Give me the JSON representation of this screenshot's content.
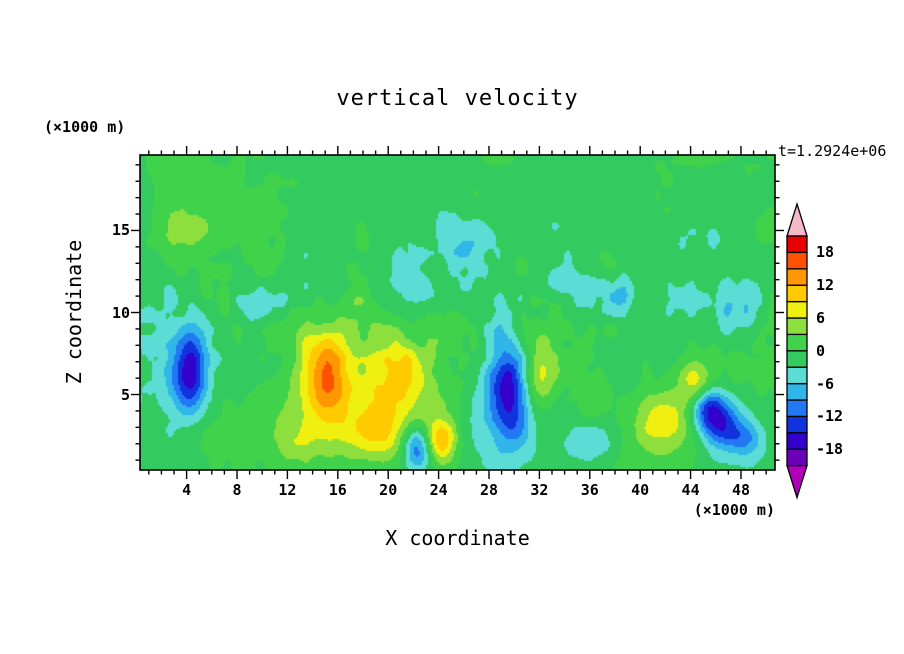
{
  "chart_data": {
    "type": "heatmap",
    "title": "vertical velocity",
    "xlabel": "X coordinate",
    "ylabel": "Z coordinate",
    "x_units_label": "(×1000 m)",
    "y_units_label": "(×1000 m)",
    "time_label": "t=1.2924e+06",
    "x_ticks": [
      4,
      8,
      12,
      16,
      20,
      24,
      28,
      32,
      36,
      40,
      44,
      48
    ],
    "y_ticks": [
      5,
      10,
      15
    ],
    "xlim": [
      0.3,
      50.7
    ],
    "ylim": [
      0.4,
      19.6
    ],
    "contour_interval": 3,
    "levels": [
      -21,
      -18,
      -15,
      -12,
      -9,
      -6,
      -3,
      0,
      3,
      6,
      9,
      12,
      15,
      18,
      21
    ],
    "colorbar": {
      "position": "right",
      "labels": [
        18,
        12,
        6,
        0,
        -6,
        -12,
        -18
      ],
      "label_step": 6,
      "colors_low_to_high": [
        "#6A00B8",
        "#3300CC",
        "#1133DD",
        "#2277F2",
        "#30B6E8",
        "#5BDCD4",
        "#33CB60",
        "#41D24B",
        "#8CDF3C",
        "#EFF010",
        "#FFCB00",
        "#FF9800",
        "#FF5200",
        "#E80000"
      ],
      "under_color": "#B000B8",
      "over_color": "#F5B9C9"
    },
    "field_model": {
      "description": "vertical velocity field: green background near 0, yellow/orange updrafts (+6..+15) in lower half, dark blue downdrafts (-9..-18), cyan patches (-3..-6) aloft",
      "background": -0.8,
      "envelope": {
        "base": 0.55,
        "peak": 1.05,
        "z0": 10.5,
        "zw": 4.5
      },
      "noise_octaves": [
        {
          "scale": 2.2,
          "amp": 1.5,
          "ox": 0,
          "oy": 0,
          "enveloped": true
        },
        {
          "scale": 0.9,
          "amp": 1.1,
          "ox": 41,
          "oy": 17,
          "enveloped": true
        },
        {
          "scale": 7.0,
          "amp": 1.3,
          "ox": 7,
          "oy": 3,
          "enveloped": false
        }
      ],
      "blobs": [
        {
          "x": 4.3,
          "z": 6.3,
          "rx": 0.9,
          "rz": 1.5,
          "a": -14
        },
        {
          "x": 4.2,
          "z": 6.5,
          "rx": 2.0,
          "rz": 2.6,
          "a": -4
        },
        {
          "x": 15.2,
          "z": 6.3,
          "rx": 1.1,
          "rz": 1.9,
          "a": 11
        },
        {
          "x": 14.8,
          "z": 5.5,
          "rx": 2.2,
          "rz": 3.0,
          "a": 5
        },
        {
          "x": 20.5,
          "z": 5.3,
          "rx": 2.8,
          "rz": 2.6,
          "a": 7
        },
        {
          "x": 21.2,
          "z": 6.4,
          "rx": 1.3,
          "rz": 1.5,
          "a": 6
        },
        {
          "x": 18.8,
          "z": 2.8,
          "rx": 1.6,
          "rz": 1.2,
          "a": 7
        },
        {
          "x": 24.2,
          "z": 2.2,
          "rx": 0.9,
          "rz": 0.9,
          "a": 12
        },
        {
          "x": 22.3,
          "z": 1.8,
          "rx": 0.8,
          "rz": 0.9,
          "a": -13
        },
        {
          "x": 29.6,
          "z": 5.3,
          "rx": 1.2,
          "rz": 2.2,
          "a": -13
        },
        {
          "x": 29.3,
          "z": 4.8,
          "rx": 2.2,
          "rz": 3.0,
          "a": -5
        },
        {
          "x": 31.8,
          "z": 6.2,
          "rx": 1.1,
          "rz": 1.5,
          "a": 11
        },
        {
          "x": 35.5,
          "z": 2.0,
          "rx": 1.6,
          "rz": 1.0,
          "a": -5
        },
        {
          "x": 41.8,
          "z": 3.3,
          "rx": 1.6,
          "rz": 1.3,
          "a": 9
        },
        {
          "x": 44.3,
          "z": 5.6,
          "rx": 0.9,
          "rz": 0.9,
          "a": 8
        },
        {
          "x": 45.2,
          "z": 4.2,
          "rx": 0.9,
          "rz": 0.9,
          "a": -9
        },
        {
          "x": 46.3,
          "z": 3.4,
          "rx": 1.1,
          "rz": 1.1,
          "a": -13
        },
        {
          "x": 48.3,
          "z": 2.3,
          "rx": 1.0,
          "rz": 0.8,
          "a": -8
        },
        {
          "x": 4.0,
          "z": 15.0,
          "rx": 1.8,
          "rz": 1.2,
          "a": 4.5
        },
        {
          "x": 26.0,
          "z": 14.0,
          "rx": 2.0,
          "rz": 1.2,
          "a": -4.5
        },
        {
          "x": 33.5,
          "z": 12.0,
          "rx": 1.2,
          "rz": 0.9,
          "a": -4
        },
        {
          "x": 38.5,
          "z": 11.2,
          "rx": 1.0,
          "rz": 0.8,
          "a": -4
        },
        {
          "x": 47.5,
          "z": 10.5,
          "rx": 1.5,
          "rz": 1.0,
          "a": -5
        },
        {
          "x": 44.0,
          "z": 14.5,
          "rx": 1.5,
          "rz": 0.9,
          "a": -3.5
        },
        {
          "x": 21.5,
          "z": 12.0,
          "rx": 1.0,
          "rz": 0.8,
          "a": -3.5
        },
        {
          "x": 10.0,
          "z": 10.2,
          "rx": 0.9,
          "rz": 0.7,
          "a": -3.5
        },
        {
          "x": 7.0,
          "z": 2.5,
          "rx": 1.8,
          "rz": 1.2,
          "a": 3
        },
        {
          "x": 36.5,
          "z": 5.0,
          "rx": 1.0,
          "rz": 1.0,
          "a": 3.5
        },
        {
          "x": 12.3,
          "z": 2.2,
          "rx": 1.4,
          "rz": 1.0,
          "a": 4
        }
      ]
    }
  }
}
